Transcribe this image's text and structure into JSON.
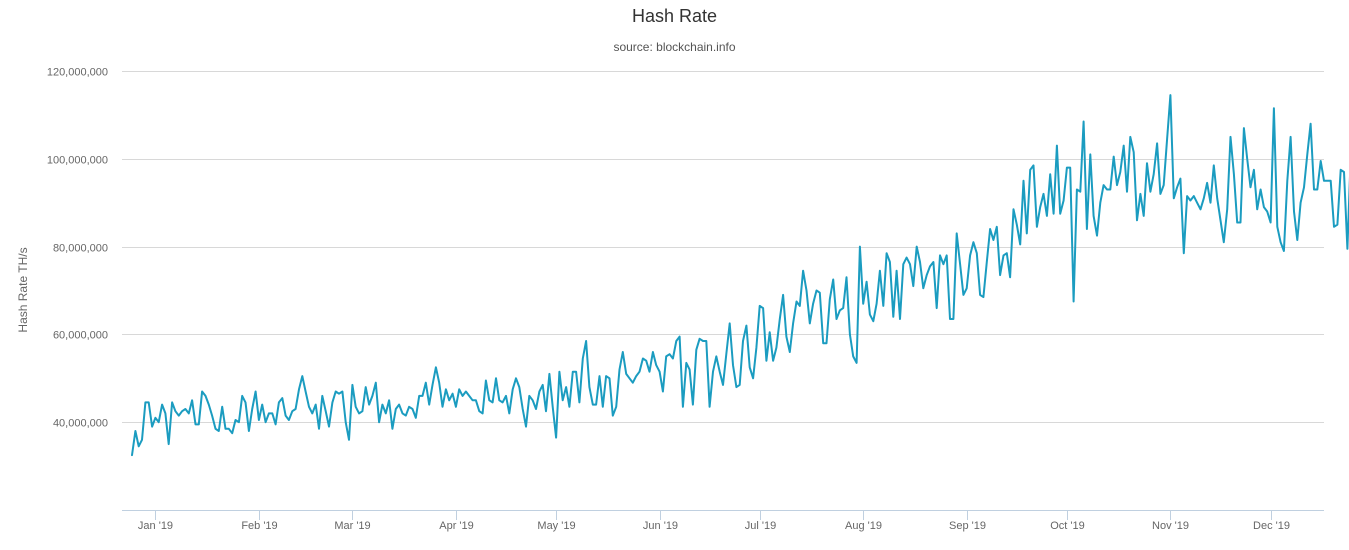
{
  "chart_data": {
    "type": "line",
    "title": "Hash Rate",
    "subtitle": "source: blockchain.info",
    "ylabel": "Hash Rate TH/s",
    "xlabel": "",
    "ylim": [
      20000000,
      120000000
    ],
    "y_ticks": [
      40000000,
      60000000,
      80000000,
      100000000,
      120000000
    ],
    "y_tick_labels": [
      "40,000,000",
      "60,000,000",
      "80,000,000",
      "100,000,000",
      "120,000,000"
    ],
    "x_tick_labels": [
      "Jan '19",
      "Feb '19",
      "Mar '19",
      "Apr '19",
      "May '19",
      "Jun '19",
      "Jul '19",
      "Aug '19",
      "Sep '19",
      "Oct '19",
      "Nov '19",
      "Dec '19"
    ],
    "x_range_days": [
      -10,
      350
    ],
    "x_ticks_days": [
      0,
      31,
      59,
      90,
      120,
      151,
      181,
      212,
      243,
      273,
      304,
      334
    ],
    "grid": true,
    "line_color": "#1b9cc0",
    "series": [
      {
        "x_start_day": -7,
        "x_step_days": 1,
        "values": [
          32.5,
          38,
          34.5,
          36,
          44.5,
          44.5,
          39,
          41,
          40,
          44,
          42,
          35,
          44.5,
          42.5,
          41.5,
          42.5,
          43,
          42,
          45,
          39.5,
          39.5,
          47,
          46,
          44,
          41.5,
          38.5,
          38,
          43.5,
          38.5,
          38.5,
          37.5,
          40.5,
          40,
          46,
          44.5,
          38,
          43,
          47,
          40.5,
          44,
          40,
          42,
          42,
          39.5,
          44.5,
          45.5,
          41.5,
          40.5,
          42.5,
          43,
          47.5,
          50.5,
          47,
          43.5,
          42,
          44,
          38.5,
          46,
          42.5,
          39,
          44.5,
          47,
          46.5,
          47,
          40,
          36,
          48.5,
          43.5,
          42,
          42.5,
          48,
          44,
          46,
          49,
          40,
          44,
          42,
          45,
          38.5,
          43,
          44,
          42,
          41.5,
          43.5,
          43,
          41,
          46,
          46,
          49,
          44,
          48.5,
          52.5,
          49,
          43.5,
          47.5,
          45,
          46.5,
          43.5,
          47.5,
          46,
          47,
          46,
          45,
          45,
          42.5,
          42,
          49.5,
          45,
          44.5,
          50,
          45,
          44.5,
          46,
          42,
          47.5,
          50,
          48,
          43,
          39,
          46,
          45,
          43,
          47,
          48.5,
          42.5,
          51,
          43.5,
          36.5,
          51.5,
          45,
          48,
          43.5,
          51.5,
          51.5,
          44.5,
          54.5,
          58.5,
          48,
          44,
          44,
          50.5,
          43.5,
          50.5,
          50,
          41.5,
          43.5,
          52,
          56,
          51,
          50,
          49,
          50.5,
          51.5,
          54.5,
          54,
          51.5,
          56,
          53,
          51.5,
          47,
          55,
          55.5,
          54.5,
          58.5,
          59.5,
          43.5,
          53.5,
          52,
          44,
          56.5,
          59,
          58.5,
          58.5,
          43.5,
          51.5,
          55,
          51.5,
          48.5,
          55.5,
          62.5,
          53,
          48,
          48.5,
          58.5,
          62,
          52.5,
          50,
          57,
          66.5,
          66,
          54,
          60.5,
          54,
          57,
          63.5,
          69,
          59.5,
          56,
          62.5,
          67.5,
          66.5,
          74.5,
          70,
          62.5,
          67,
          70,
          69.5,
          58,
          58,
          68,
          72.5,
          63.5,
          65.5,
          66,
          73,
          60,
          55,
          53.5,
          80,
          67,
          72,
          64.5,
          63,
          67,
          74.5,
          66.5,
          78.5,
          76.5,
          64,
          74.5,
          63.5,
          76,
          77.5,
          76,
          71,
          80,
          76.5,
          70.5,
          73.5,
          75.5,
          76.5,
          66,
          78,
          76,
          78,
          63.5,
          63.5,
          83,
          76,
          69,
          70.5,
          78,
          81,
          78.5,
          69,
          68.5,
          76.5,
          84,
          81.5,
          84.5,
          73.5,
          78,
          78.5,
          73,
          88.5,
          85,
          80.5,
          95,
          83,
          97.5,
          98.5,
          84.5,
          89,
          92,
          87,
          96.5,
          87.5,
          103,
          87.5,
          90.5,
          98,
          98,
          67.5,
          93,
          92.5,
          108.5,
          84,
          101,
          87,
          82.5,
          90,
          94,
          93,
          93,
          100.5,
          94,
          97,
          103,
          92.5,
          105,
          101.5,
          86,
          92,
          87,
          99,
          92.5,
          96.5,
          103.5,
          92,
          94,
          104.5,
          114.5,
          91,
          93.5,
          95.5,
          78.5,
          91.5,
          90.5,
          91.5,
          90,
          88.5,
          91,
          94.5,
          90,
          98.5,
          91,
          86,
          81,
          88.5,
          105,
          96.5,
          85.5,
          85.5,
          107,
          100,
          93.5,
          97.5,
          88.5,
          93,
          89,
          88,
          85.5,
          111.5,
          84.5,
          81,
          79,
          95,
          105,
          88,
          81.5,
          90,
          93.5,
          101,
          108,
          93,
          93,
          99.5,
          95,
          95,
          95,
          84.5,
          85,
          97.5,
          97,
          79.5,
          100.5
        ]
      }
    ]
  }
}
